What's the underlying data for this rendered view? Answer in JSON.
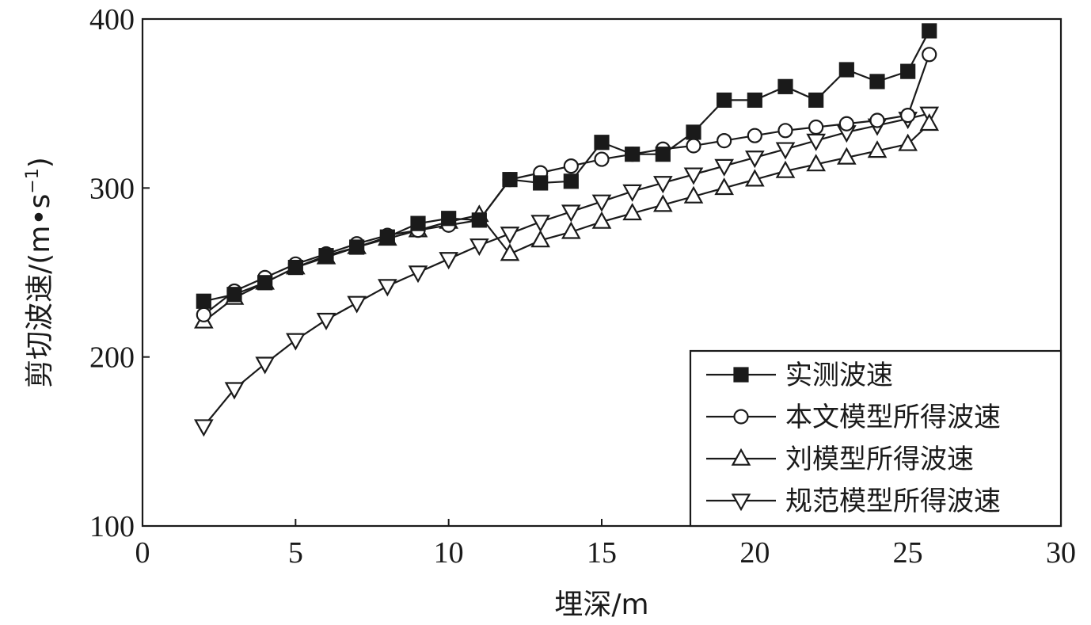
{
  "chart_data": {
    "type": "line",
    "xlabel": "埋深/m",
    "ylabel": "剪切波速/(m•s",
    "ylabel_sup": "−1",
    "ylabel_close": ")",
    "xlim": [
      0,
      30
    ],
    "ylim": [
      100,
      400
    ],
    "x_ticks": [
      0,
      5,
      10,
      15,
      20,
      25,
      30
    ],
    "y_ticks": [
      100,
      200,
      300,
      400
    ],
    "x_tick_labels": [
      "0",
      "5",
      "10",
      "15",
      "20",
      "25",
      "30"
    ],
    "y_tick_labels": [
      "100",
      "200",
      "300",
      "400"
    ],
    "grid": false,
    "legend_position": "bottom-right",
    "series": [
      {
        "name": "实测波速",
        "marker": "filled-square",
        "x": [
          2,
          3,
          4,
          5,
          6,
          7,
          8,
          9,
          10,
          11,
          12,
          13,
          14,
          15,
          16,
          17,
          18,
          19,
          20,
          21,
          22,
          23,
          24,
          25,
          25.7
        ],
        "y": [
          233,
          237,
          244,
          253,
          260,
          265,
          271,
          279,
          282,
          281,
          305,
          303,
          304,
          327,
          320,
          320,
          333,
          352,
          352,
          360,
          352,
          370,
          363,
          369,
          393
        ]
      },
      {
        "name": "本文模型所得波速",
        "marker": "open-circle",
        "x": [
          2,
          3,
          4,
          5,
          6,
          7,
          8,
          9,
          10,
          11,
          12,
          13,
          14,
          15,
          16,
          17,
          18,
          19,
          20,
          21,
          22,
          23,
          24,
          25,
          25.7
        ],
        "y": [
          225,
          239,
          247,
          255,
          261,
          267,
          272,
          275,
          278,
          281,
          305,
          309,
          313,
          317,
          320,
          323,
          325,
          328,
          331,
          334,
          336,
          338,
          340,
          343,
          379
        ]
      },
      {
        "name": "刘模型所得波速",
        "marker": "open-triangle-up",
        "x": [
          2,
          3,
          4,
          5,
          6,
          7,
          8,
          9,
          10,
          11,
          12,
          13,
          14,
          15,
          16,
          17,
          18,
          19,
          20,
          21,
          22,
          23,
          24,
          25,
          25.7
        ],
        "y": [
          221,
          235,
          244,
          253,
          259,
          265,
          270,
          275,
          280,
          284,
          261,
          269,
          274,
          280,
          285,
          290,
          295,
          300,
          305,
          310,
          314,
          318,
          322,
          326,
          338
        ]
      },
      {
        "name": "规范模型所得波速",
        "marker": "open-triangle-down",
        "x": [
          2,
          3,
          4,
          5,
          6,
          7,
          8,
          9,
          10,
          11,
          12,
          13,
          14,
          15,
          16,
          17,
          18,
          19,
          20,
          21,
          22,
          23,
          24,
          25,
          25.7
        ],
        "y": [
          159,
          181,
          196,
          210,
          222,
          232,
          242,
          250,
          258,
          266,
          273,
          280,
          286,
          292,
          298,
          303,
          308,
          313,
          318,
          323,
          328,
          333,
          337,
          341,
          344
        ]
      }
    ]
  }
}
